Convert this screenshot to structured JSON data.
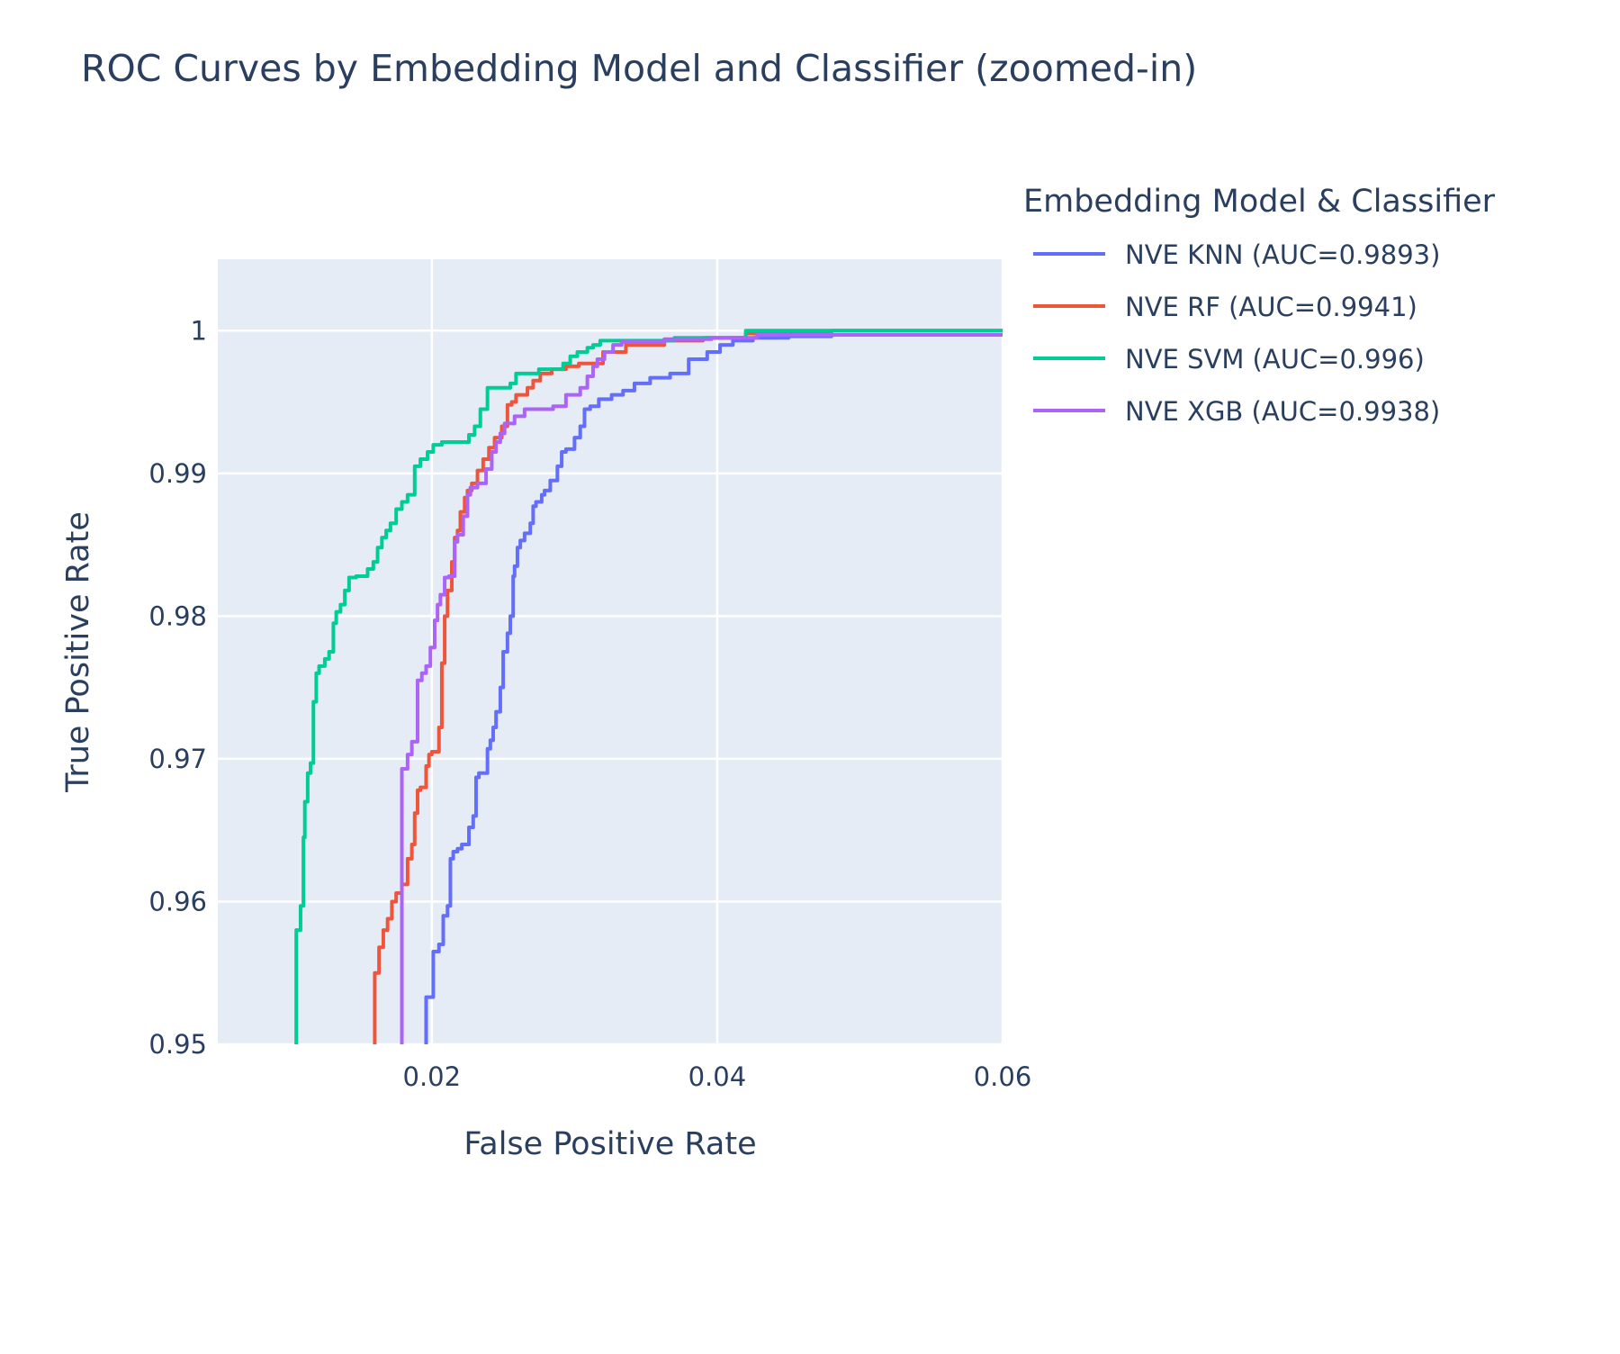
{
  "chart_data": {
    "type": "line",
    "title": "ROC Curves by Embedding Model and Classifier (zoomed-in)",
    "xlabel": "False Positive Rate",
    "ylabel": "True Positive Rate",
    "xlim": [
      0.005,
      0.06
    ],
    "ylim": [
      0.95,
      1.005
    ],
    "x_ticks": [
      0.02,
      0.04,
      0.06
    ],
    "x_tick_labels": [
      "0.02",
      "0.04",
      "0.06"
    ],
    "y_ticks": [
      0.95,
      0.96,
      0.97,
      0.98,
      0.99,
      1.0
    ],
    "y_tick_labels": [
      "0.95",
      "0.96",
      "0.97",
      "0.98",
      "0.99",
      "1"
    ],
    "grid": true,
    "plot_background": "#e5ecf6",
    "legend": {
      "title": "Embedding Model & Classifier",
      "placement": "right"
    },
    "series": [
      {
        "name": "NVE KNN (AUC=0.9893)",
        "color": "#636efa",
        "points": [
          [
            0.0196,
            0.94
          ],
          [
            0.0196,
            0.9533
          ],
          [
            0.0201,
            0.9533
          ],
          [
            0.0201,
            0.9538
          ],
          [
            0.0205,
            0.9565
          ],
          [
            0.0208,
            0.957
          ],
          [
            0.0211,
            0.959
          ],
          [
            0.0213,
            0.9597
          ],
          [
            0.0215,
            0.963
          ],
          [
            0.0218,
            0.9635
          ],
          [
            0.0221,
            0.9637
          ],
          [
            0.0226,
            0.964
          ],
          [
            0.0229,
            0.9652
          ],
          [
            0.0231,
            0.966
          ],
          [
            0.0233,
            0.9687
          ],
          [
            0.0239,
            0.969
          ],
          [
            0.0241,
            0.9707
          ],
          [
            0.0243,
            0.9713
          ],
          [
            0.0245,
            0.9722
          ],
          [
            0.0248,
            0.9733
          ],
          [
            0.025,
            0.975
          ],
          [
            0.0253,
            0.9775
          ],
          [
            0.0255,
            0.9788
          ],
          [
            0.0257,
            0.98
          ],
          [
            0.0258,
            0.9828
          ],
          [
            0.026,
            0.9835
          ],
          [
            0.0262,
            0.9848
          ],
          [
            0.0265,
            0.9853
          ],
          [
            0.0269,
            0.9858
          ],
          [
            0.0271,
            0.9865
          ],
          [
            0.0273,
            0.9877
          ],
          [
            0.0277,
            0.988
          ],
          [
            0.0279,
            0.9885
          ],
          [
            0.0283,
            0.9888
          ],
          [
            0.0288,
            0.9895
          ],
          [
            0.0291,
            0.9905
          ],
          [
            0.0294,
            0.9915
          ],
          [
            0.03,
            0.9917
          ],
          [
            0.0304,
            0.9925
          ],
          [
            0.0307,
            0.9933
          ],
          [
            0.0311,
            0.9945
          ],
          [
            0.0317,
            0.9947
          ],
          [
            0.0326,
            0.9952
          ],
          [
            0.0334,
            0.9955
          ],
          [
            0.0342,
            0.9958
          ],
          [
            0.0353,
            0.9963
          ],
          [
            0.0367,
            0.9967
          ],
          [
            0.038,
            0.997
          ],
          [
            0.0393,
            0.998
          ],
          [
            0.0402,
            0.9985
          ],
          [
            0.0411,
            0.999
          ],
          [
            0.0425,
            0.9993
          ],
          [
            0.045,
            0.9995
          ],
          [
            0.048,
            0.9996
          ],
          [
            0.06,
            0.9997
          ]
        ]
      },
      {
        "name": "NVE RF (AUC=0.9941)",
        "color": "#ef553b",
        "points": [
          [
            0.016,
            0.94
          ],
          [
            0.016,
            0.951
          ],
          [
            0.0163,
            0.955
          ],
          [
            0.0166,
            0.9568
          ],
          [
            0.0169,
            0.958
          ],
          [
            0.0172,
            0.9588
          ],
          [
            0.0175,
            0.96
          ],
          [
            0.0179,
            0.9606
          ],
          [
            0.0183,
            0.9612
          ],
          [
            0.0186,
            0.963
          ],
          [
            0.0188,
            0.964
          ],
          [
            0.019,
            0.9662
          ],
          [
            0.0192,
            0.9678
          ],
          [
            0.0196,
            0.968
          ],
          [
            0.0198,
            0.9695
          ],
          [
            0.02,
            0.9703
          ],
          [
            0.0205,
            0.9705
          ],
          [
            0.0207,
            0.9722
          ],
          [
            0.0209,
            0.9767
          ],
          [
            0.0211,
            0.98
          ],
          [
            0.0214,
            0.9818
          ],
          [
            0.0216,
            0.9838
          ],
          [
            0.0218,
            0.9855
          ],
          [
            0.022,
            0.986
          ],
          [
            0.0223,
            0.9873
          ],
          [
            0.0225,
            0.9883
          ],
          [
            0.0228,
            0.9888
          ],
          [
            0.0232,
            0.9893
          ],
          [
            0.0236,
            0.9902
          ],
          [
            0.024,
            0.991
          ],
          [
            0.0244,
            0.9918
          ],
          [
            0.0249,
            0.9925
          ],
          [
            0.0253,
            0.9933
          ],
          [
            0.0256,
            0.9948
          ],
          [
            0.0259,
            0.995
          ],
          [
            0.0267,
            0.9955
          ],
          [
            0.0271,
            0.996
          ],
          [
            0.0276,
            0.9965
          ],
          [
            0.0284,
            0.997
          ],
          [
            0.0294,
            0.9973
          ],
          [
            0.0303,
            0.9975
          ],
          [
            0.032,
            0.9977
          ],
          [
            0.0336,
            0.9985
          ],
          [
            0.0363,
            0.999
          ],
          [
            0.039,
            0.9993
          ],
          [
            0.042,
            0.9995
          ],
          [
            0.048,
            0.9998
          ],
          [
            0.06,
            1.0
          ]
        ]
      },
      {
        "name": "NVE SVM (AUC=0.996)",
        "color": "#00cc96",
        "points": [
          [
            0.0105,
            0.94
          ],
          [
            0.0105,
            0.9525
          ],
          [
            0.0108,
            0.958
          ],
          [
            0.011,
            0.9597
          ],
          [
            0.0111,
            0.9645
          ],
          [
            0.0113,
            0.967
          ],
          [
            0.0115,
            0.969
          ],
          [
            0.0117,
            0.9697
          ],
          [
            0.0119,
            0.974
          ],
          [
            0.0121,
            0.976
          ],
          [
            0.0125,
            0.9765
          ],
          [
            0.0128,
            0.977
          ],
          [
            0.0131,
            0.9775
          ],
          [
            0.0133,
            0.9795
          ],
          [
            0.0136,
            0.9803
          ],
          [
            0.0139,
            0.9808
          ],
          [
            0.0142,
            0.9818
          ],
          [
            0.0147,
            0.9827
          ],
          [
            0.0155,
            0.9828
          ],
          [
            0.0159,
            0.9833
          ],
          [
            0.0162,
            0.9838
          ],
          [
            0.0165,
            0.9848
          ],
          [
            0.0168,
            0.9855
          ],
          [
            0.0171,
            0.986
          ],
          [
            0.0175,
            0.9865
          ],
          [
            0.0179,
            0.9875
          ],
          [
            0.0183,
            0.988
          ],
          [
            0.0188,
            0.9885
          ],
          [
            0.0192,
            0.9905
          ],
          [
            0.0197,
            0.991
          ],
          [
            0.0201,
            0.9915
          ],
          [
            0.0207,
            0.992
          ],
          [
            0.0226,
            0.9922
          ],
          [
            0.023,
            0.9927
          ],
          [
            0.0234,
            0.9933
          ],
          [
            0.0239,
            0.9945
          ],
          [
            0.0255,
            0.996
          ],
          [
            0.0259,
            0.9963
          ],
          [
            0.0275,
            0.997
          ],
          [
            0.0292,
            0.9973
          ],
          [
            0.0297,
            0.9977
          ],
          [
            0.0302,
            0.9982
          ],
          [
            0.0309,
            0.9985
          ],
          [
            0.0313,
            0.9988
          ],
          [
            0.0318,
            0.999
          ],
          [
            0.037,
            0.9993
          ],
          [
            0.042,
            0.9995
          ],
          [
            0.049,
            1.0
          ],
          [
            0.06,
            1.0
          ]
        ]
      },
      {
        "name": "NVE XGB (AUC=0.9938)",
        "color": "#ab63fa",
        "points": [
          [
            0.0179,
            0.94
          ],
          [
            0.0179,
            0.9687
          ],
          [
            0.0183,
            0.9693
          ],
          [
            0.0186,
            0.9703
          ],
          [
            0.019,
            0.9712
          ],
          [
            0.0193,
            0.9755
          ],
          [
            0.0196,
            0.976
          ],
          [
            0.0199,
            0.9765
          ],
          [
            0.0202,
            0.9778
          ],
          [
            0.0204,
            0.9797
          ],
          [
            0.0206,
            0.9808
          ],
          [
            0.0209,
            0.9815
          ],
          [
            0.0212,
            0.9827
          ],
          [
            0.0216,
            0.9828
          ],
          [
            0.0218,
            0.9852
          ],
          [
            0.0222,
            0.9857
          ],
          [
            0.0225,
            0.987
          ],
          [
            0.0227,
            0.9885
          ],
          [
            0.0232,
            0.989
          ],
          [
            0.0238,
            0.9893
          ],
          [
            0.0242,
            0.9903
          ],
          [
            0.0245,
            0.9915
          ],
          [
            0.0248,
            0.9922
          ],
          [
            0.0251,
            0.9928
          ],
          [
            0.0258,
            0.9935
          ],
          [
            0.0265,
            0.994
          ],
          [
            0.0285,
            0.9945
          ],
          [
            0.0294,
            0.9947
          ],
          [
            0.0304,
            0.9955
          ],
          [
            0.0309,
            0.996
          ],
          [
            0.0313,
            0.9968
          ],
          [
            0.0316,
            0.9975
          ],
          [
            0.0321,
            0.998
          ],
          [
            0.0327,
            0.9985
          ],
          [
            0.0333,
            0.999
          ],
          [
            0.0363,
            0.9992
          ],
          [
            0.0396,
            0.9994
          ],
          [
            0.0428,
            0.9995
          ],
          [
            0.06,
            0.9997
          ]
        ]
      }
    ]
  }
}
